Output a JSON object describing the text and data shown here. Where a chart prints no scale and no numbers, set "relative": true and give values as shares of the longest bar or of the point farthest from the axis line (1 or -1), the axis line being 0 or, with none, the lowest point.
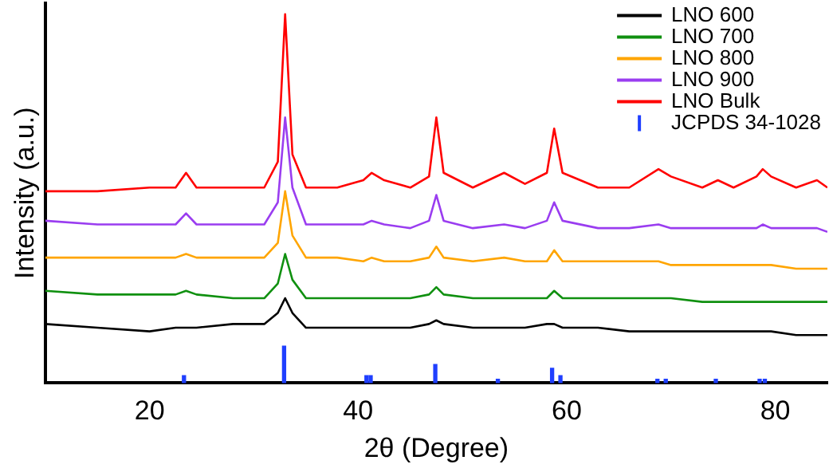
{
  "chart_data": {
    "type": "line",
    "xlabel": "2θ (Degree)",
    "ylabel": "Intensity (a.u.)",
    "relative": true,
    "xlim": [
      10,
      85
    ],
    "xticks": [
      20,
      40,
      60,
      80
    ],
    "grid": false,
    "legend": "top right",
    "marker": "none",
    "line_style": "solid",
    "x": [
      10,
      15,
      20,
      22.5,
      23.5,
      24.5,
      28,
      31,
      32.3,
      33,
      33.7,
      35,
      38,
      40.5,
      41.3,
      42.5,
      45,
      46.8,
      47.5,
      48.2,
      51,
      54,
      56,
      58.1,
      58.8,
      59.6,
      63,
      66,
      68.8,
      70,
      73,
      74.5,
      76,
      78.2,
      78.8,
      79.6,
      82,
      84,
      85
    ],
    "series": [
      {
        "name": "LNO 600",
        "color": "#000000",
        "values": [
          0.16,
          0.15,
          0.14,
          0.15,
          0.15,
          0.15,
          0.16,
          0.16,
          0.19,
          0.23,
          0.19,
          0.15,
          0.15,
          0.15,
          0.15,
          0.15,
          0.15,
          0.16,
          0.17,
          0.16,
          0.15,
          0.15,
          0.15,
          0.16,
          0.16,
          0.15,
          0.15,
          0.14,
          0.14,
          0.14,
          0.14,
          0.14,
          0.14,
          0.14,
          0.14,
          0.14,
          0.13,
          0.13,
          0.13
        ]
      },
      {
        "name": "LNO 700",
        "color": "#109010",
        "values": [
          0.25,
          0.24,
          0.24,
          0.24,
          0.25,
          0.24,
          0.23,
          0.23,
          0.27,
          0.35,
          0.28,
          0.23,
          0.23,
          0.23,
          0.23,
          0.23,
          0.23,
          0.24,
          0.26,
          0.24,
          0.23,
          0.23,
          0.23,
          0.23,
          0.25,
          0.23,
          0.23,
          0.23,
          0.23,
          0.23,
          0.22,
          0.22,
          0.22,
          0.22,
          0.22,
          0.22,
          0.22,
          0.22,
          0.22
        ]
      },
      {
        "name": "LNO 800",
        "color": "#ffa500",
        "values": [
          0.34,
          0.34,
          0.34,
          0.34,
          0.35,
          0.34,
          0.34,
          0.34,
          0.38,
          0.52,
          0.4,
          0.34,
          0.34,
          0.33,
          0.34,
          0.33,
          0.33,
          0.34,
          0.37,
          0.34,
          0.33,
          0.34,
          0.33,
          0.33,
          0.36,
          0.33,
          0.33,
          0.33,
          0.33,
          0.32,
          0.32,
          0.32,
          0.32,
          0.32,
          0.32,
          0.32,
          0.31,
          0.31,
          0.31
        ]
      },
      {
        "name": "LNO 900",
        "color": "#9a3df0",
        "values": [
          0.44,
          0.43,
          0.43,
          0.43,
          0.46,
          0.43,
          0.43,
          0.43,
          0.49,
          0.72,
          0.53,
          0.43,
          0.43,
          0.43,
          0.44,
          0.43,
          0.42,
          0.44,
          0.51,
          0.44,
          0.42,
          0.43,
          0.42,
          0.44,
          0.49,
          0.44,
          0.42,
          0.42,
          0.43,
          0.42,
          0.42,
          0.42,
          0.42,
          0.42,
          0.43,
          0.42,
          0.42,
          0.42,
          0.41
        ]
      },
      {
        "name": "LNO Bulk",
        "color": "#ff0000",
        "values": [
          0.52,
          0.52,
          0.53,
          0.53,
          0.57,
          0.53,
          0.53,
          0.53,
          0.6,
          1.0,
          0.62,
          0.53,
          0.53,
          0.55,
          0.57,
          0.55,
          0.53,
          0.56,
          0.72,
          0.57,
          0.53,
          0.57,
          0.54,
          0.57,
          0.69,
          0.57,
          0.53,
          0.53,
          0.58,
          0.56,
          0.53,
          0.55,
          0.53,
          0.56,
          0.58,
          0.56,
          0.53,
          0.55,
          0.53
        ]
      },
      {
        "name": "JCPDS 34-1028",
        "type": "bar",
        "color": "#1f3fff",
        "x": [
          23.3,
          32.9,
          40.8,
          41.2,
          47.4,
          53.4,
          58.6,
          59.4,
          68.7,
          69.5,
          74.3,
          78.5,
          79.0
        ],
        "values": [
          0.02,
          0.1,
          0.02,
          0.02,
          0.05,
          0.01,
          0.04,
          0.02,
          0.01,
          0.01,
          0.01,
          0.01,
          0.01
        ]
      }
    ]
  }
}
